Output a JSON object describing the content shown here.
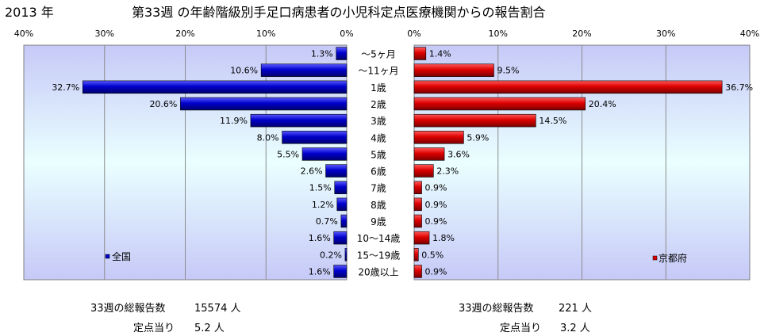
{
  "year_label": "2013 年",
  "title": "第33週 の年齢階級別手足口病患者の小児科定点医療機関からの報告割合",
  "chart_data": {
    "type": "bar",
    "orientation": "horizontal",
    "categories": [
      "～5ヶ月",
      "～11ヶ月",
      "1歳",
      "2歳",
      "3歳",
      "4歳",
      "5歳",
      "6歳",
      "7歳",
      "8歳",
      "9歳",
      "10～14歳",
      "15～19歳",
      "20歳以上"
    ],
    "xlim": [
      0,
      40
    ],
    "x_ticks": [
      "40%",
      "30%",
      "20%",
      "10%",
      "0%"
    ],
    "x_ticks_right": [
      "0%",
      "10%",
      "20%",
      "30%",
      "40%"
    ],
    "grid": true,
    "background": {
      "top": "#c6c9f7",
      "middle": "#eaffff",
      "bottom": "#c6c9f7"
    },
    "series": [
      {
        "name": "全国",
        "color": "#0000cc",
        "side": "left",
        "values": [
          1.3,
          10.6,
          32.7,
          20.6,
          11.9,
          8.0,
          5.5,
          2.6,
          1.5,
          1.2,
          0.7,
          1.6,
          0.2,
          1.6
        ],
        "labels": [
          "1.3%",
          "10.6%",
          "32.7%",
          "20.6%",
          "11.9%",
          "8.0%",
          "5.5%",
          "2.6%",
          "1.5%",
          "1.2%",
          "0.7%",
          "1.6%",
          "0.2%",
          "1.6%"
        ],
        "legend_position": "bottom-left"
      },
      {
        "name": "京都府",
        "color": "#dd0000",
        "side": "right",
        "values": [
          1.4,
          9.5,
          36.7,
          20.4,
          14.5,
          5.9,
          3.6,
          2.3,
          0.9,
          0.9,
          0.9,
          1.8,
          0.5,
          0.9
        ],
        "labels": [
          "1.4%",
          "9.5%",
          "36.7%",
          "20.4%",
          "14.5%",
          "5.9%",
          "3.6%",
          "2.3%",
          "0.9%",
          "0.9%",
          "0.9%",
          "1.8%",
          "0.5%",
          "0.9%"
        ],
        "legend_position": "bottom-right"
      }
    ]
  },
  "stats": {
    "left": {
      "total_label": "33週の総報告数",
      "total_value": "15574 人",
      "per_label": "定点当り",
      "per_value": "5.2 人"
    },
    "right": {
      "total_label": "33週の総報告数",
      "total_value": "221 人",
      "per_label": "定点当り",
      "per_value": "3.2 人"
    }
  }
}
